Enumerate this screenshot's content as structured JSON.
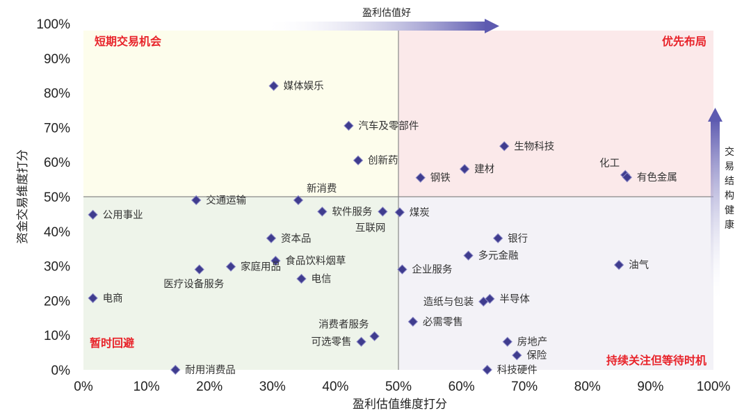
{
  "colors": {
    "top_left": "#fdfdec",
    "top_right": "#fbe9ea",
    "bottom_left": "#eef4ea",
    "bottom_right": "#f3f2f7",
    "marker": "#3f3c8e",
    "marker_stroke": "#8b89c7",
    "quadrant_text": "#e8232a",
    "arrow": "#5d5ab0"
  },
  "chart_data": {
    "type": "scatter",
    "xlabel": "盈利估值维度打分",
    "ylabel": "资金交易维度打分",
    "xlim": [
      0,
      100
    ],
    "ylim": [
      0,
      100
    ],
    "x_ticks": [
      "0%",
      "10%",
      "20%",
      "30%",
      "40%",
      "50%",
      "60%",
      "70%",
      "80%",
      "90%",
      "100%"
    ],
    "y_ticks": [
      "0%",
      "10%",
      "20%",
      "30%",
      "40%",
      "50%",
      "60%",
      "70%",
      "80%",
      "90%",
      "100%"
    ],
    "divider": {
      "x": 50,
      "y": 50
    },
    "quadrants": {
      "top_left": "短期交易机会",
      "top_right": "优先布局",
      "bottom_left": "暂时回避",
      "bottom_right": "持续关注但等待时机"
    },
    "arrows": {
      "horizontal": "盈利估值好",
      "vertical": "交易结构健康"
    },
    "points": [
      {
        "label": "媒体娱乐",
        "x": 30.2,
        "y": 82,
        "pos": "right"
      },
      {
        "label": "汽车及零部件",
        "x": 42.1,
        "y": 70.5,
        "pos": "right"
      },
      {
        "label": "创新药",
        "x": 43.6,
        "y": 60.5,
        "pos": "right"
      },
      {
        "label": "生物科技",
        "x": 66.8,
        "y": 64.6,
        "pos": "right"
      },
      {
        "label": "建材",
        "x": 60.5,
        "y": 58,
        "pos": "right"
      },
      {
        "label": "钢铁",
        "x": 53.5,
        "y": 55.5,
        "pos": "right"
      },
      {
        "label": "化工",
        "x": 86,
        "y": 56.3,
        "pos": "above-left"
      },
      {
        "label": "有色金属",
        "x": 86.3,
        "y": 55.6,
        "pos": "right"
      },
      {
        "label": "交通运输",
        "x": 17.9,
        "y": 49,
        "pos": "right"
      },
      {
        "label": "新消费",
        "x": 34.1,
        "y": 49,
        "pos": "above-right"
      },
      {
        "label": "公用事业",
        "x": 1.5,
        "y": 44.8,
        "pos": "right"
      },
      {
        "label": "软件服务",
        "x": 37.9,
        "y": 45.7,
        "pos": "right"
      },
      {
        "label": "互联网",
        "x": 47.5,
        "y": 45.7,
        "pos": "below-left"
      },
      {
        "label": "煤炭",
        "x": 50.2,
        "y": 45.5,
        "pos": "right"
      },
      {
        "label": "资本品",
        "x": 29.8,
        "y": 38,
        "pos": "right"
      },
      {
        "label": "银行",
        "x": 65.8,
        "y": 38,
        "pos": "right"
      },
      {
        "label": "食品饮料烟草",
        "x": 30.5,
        "y": 31.5,
        "pos": "right"
      },
      {
        "label": "家庭用品",
        "x": 23.4,
        "y": 29.8,
        "pos": "right"
      },
      {
        "label": "医疗设备服务",
        "x": 18.4,
        "y": 29,
        "pos": "below"
      },
      {
        "label": "多元金融",
        "x": 61.1,
        "y": 33,
        "pos": "right"
      },
      {
        "label": "企业服务",
        "x": 50.6,
        "y": 29,
        "pos": "right"
      },
      {
        "label": "油气",
        "x": 85,
        "y": 30.3,
        "pos": "right"
      },
      {
        "label": "电信",
        "x": 34.6,
        "y": 26.3,
        "pos": "right"
      },
      {
        "label": "电商",
        "x": 1.5,
        "y": 20.7,
        "pos": "right"
      },
      {
        "label": "造纸与包装",
        "x": 63.5,
        "y": 19.7,
        "pos": "left"
      },
      {
        "label": "半导体",
        "x": 64.5,
        "y": 20.5,
        "pos": "right"
      },
      {
        "label": "必需零售",
        "x": 52.3,
        "y": 13.9,
        "pos": "right"
      },
      {
        "label": "消费者服务",
        "x": 46.2,
        "y": 9.7,
        "pos": "above-left"
      },
      {
        "label": "可选零售",
        "x": 44.1,
        "y": 8.1,
        "pos": "left"
      },
      {
        "label": "房地产",
        "x": 67.3,
        "y": 8.1,
        "pos": "right"
      },
      {
        "label": "保险",
        "x": 68.8,
        "y": 4.2,
        "pos": "right"
      },
      {
        "label": "耐用消费品",
        "x": 14.6,
        "y": 0,
        "pos": "right"
      },
      {
        "label": "科技硬件",
        "x": 64.1,
        "y": 0,
        "pos": "right"
      }
    ]
  }
}
